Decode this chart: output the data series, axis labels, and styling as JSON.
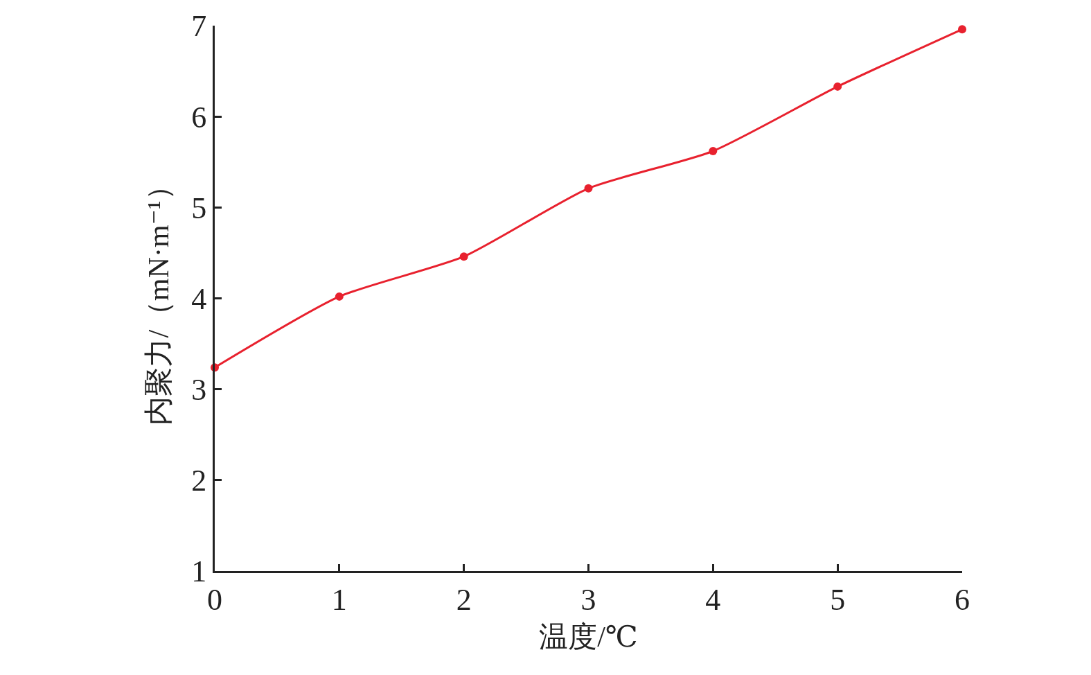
{
  "chart_data": {
    "type": "line",
    "xlabel": "温度/℃",
    "ylabel": "内聚力/（mN·m⁻¹）",
    "x": [
      0,
      1,
      2,
      3,
      4,
      5,
      6
    ],
    "series": [
      {
        "color": "#e8212e",
        "values": [
          3.24,
          4.02,
          4.46,
          5.21,
          5.62,
          6.33,
          6.96
        ]
      }
    ],
    "xlim": [
      0,
      6
    ],
    "xticks": [
      0,
      1,
      2,
      3,
      4,
      5,
      6
    ],
    "ylim": [
      1,
      7
    ],
    "yticks": [
      1,
      2,
      3,
      4,
      5,
      6,
      7
    ],
    "grid": false,
    "marker": "circle",
    "line_style": "solid"
  }
}
